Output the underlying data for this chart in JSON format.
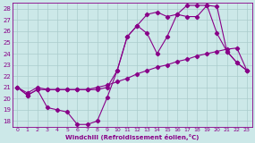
{
  "xlabel": "Windchill (Refroidissement éolien,°C)",
  "bg_color": "#cce8e8",
  "line_color": "#880088",
  "grid_color": "#aacccc",
  "xlim": [
    -0.5,
    23.5
  ],
  "ylim": [
    17.5,
    28.5
  ],
  "yticks": [
    18,
    19,
    20,
    21,
    22,
    23,
    24,
    25,
    26,
    27,
    28
  ],
  "xticks": [
    0,
    1,
    2,
    3,
    4,
    5,
    6,
    7,
    8,
    9,
    10,
    11,
    12,
    13,
    14,
    15,
    16,
    17,
    18,
    19,
    20,
    21,
    22,
    23
  ],
  "line1_x": [
    0,
    1,
    2,
    3,
    4,
    5,
    6,
    7,
    8,
    9,
    10,
    11,
    12,
    13,
    14,
    15,
    16,
    17,
    18,
    19,
    20,
    21,
    22,
    23
  ],
  "line1_y": [
    21.0,
    20.3,
    20.8,
    19.2,
    19.0,
    18.8,
    17.7,
    17.7,
    18.0,
    20.1,
    22.5,
    25.5,
    26.5,
    25.8,
    24.0,
    25.5,
    27.5,
    27.3,
    27.3,
    28.3,
    28.2,
    24.2,
    23.2,
    22.5
  ],
  "line2_x": [
    0,
    1,
    2,
    3,
    4,
    5,
    6,
    7,
    8,
    9,
    10,
    11,
    12,
    13,
    14,
    15,
    16,
    17,
    18,
    19,
    20,
    21,
    22,
    23
  ],
  "line2_y": [
    21.0,
    20.5,
    21.0,
    20.8,
    20.8,
    20.8,
    20.8,
    20.8,
    21.0,
    21.2,
    21.5,
    21.8,
    22.2,
    22.5,
    22.8,
    23.0,
    23.3,
    23.5,
    23.8,
    24.0,
    24.2,
    24.4,
    24.5,
    22.5
  ],
  "line3_x": [
    0,
    1,
    2,
    3,
    4,
    5,
    6,
    7,
    8,
    9,
    10,
    11,
    12,
    13,
    14,
    15,
    16,
    17,
    18,
    19,
    20,
    21,
    22,
    23
  ],
  "line3_y": [
    21.0,
    20.3,
    20.8,
    20.8,
    20.8,
    20.8,
    20.8,
    20.8,
    20.8,
    21.0,
    22.5,
    25.5,
    26.5,
    27.5,
    27.7,
    27.3,
    27.5,
    28.3,
    28.3,
    28.3,
    25.8,
    24.2,
    23.2,
    22.5
  ]
}
